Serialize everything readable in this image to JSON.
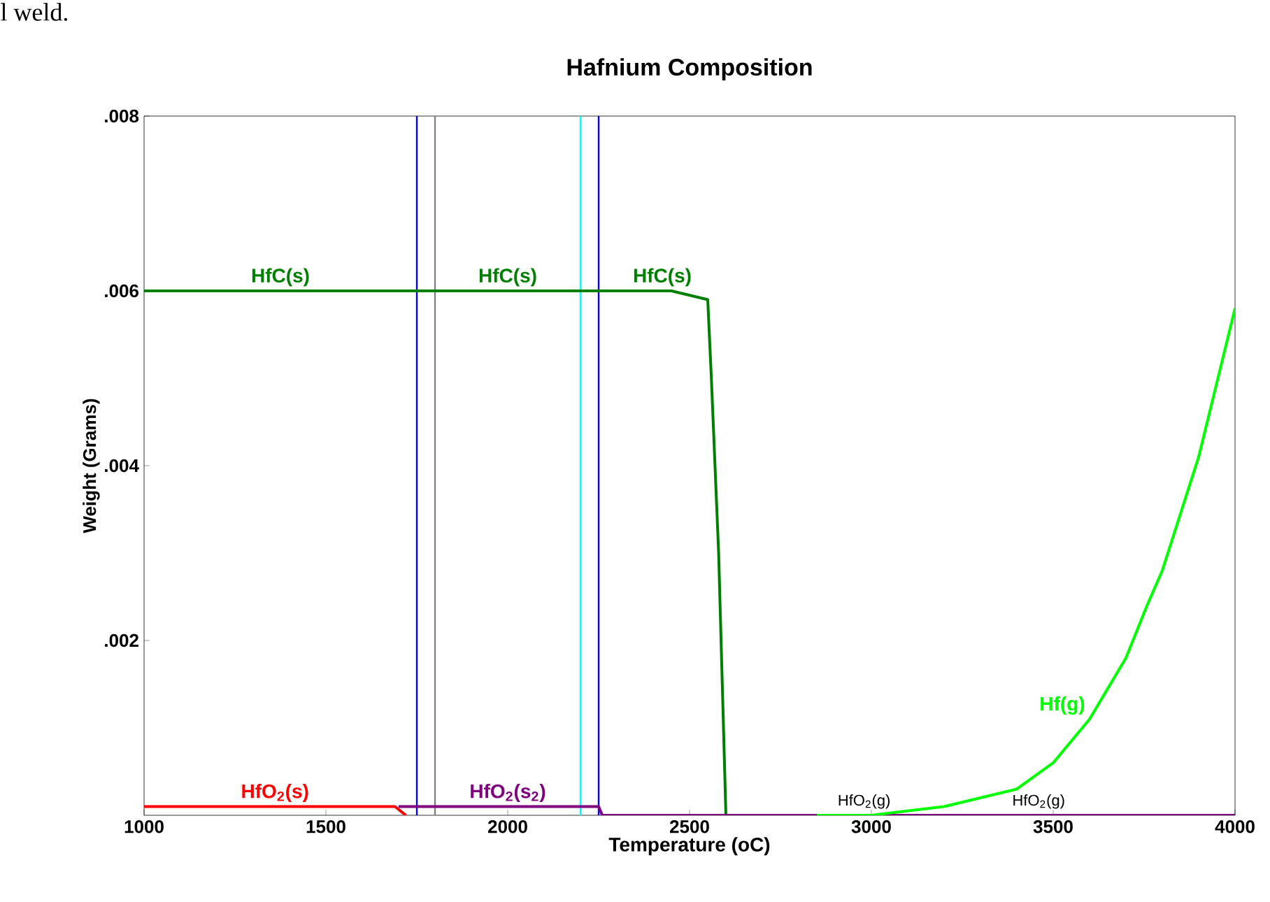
{
  "chart_data": {
    "type": "line",
    "title": "Hafnium Composition",
    "xlabel": "Temperature (oC)",
    "ylabel": "Weight (Grams)",
    "xlim": [
      1000,
      4000
    ],
    "ylim": [
      0,
      0.008
    ],
    "xticks": [
      1000,
      1500,
      2000,
      2500,
      3000,
      3500,
      4000
    ],
    "yticks": [
      {
        "value": 0.002,
        "label": ".002"
      },
      {
        "value": 0.004,
        "label": ".004"
      },
      {
        "value": 0.006,
        "label": ".006"
      },
      {
        "value": 0.008,
        "label": ".008"
      }
    ],
    "series": [
      {
        "name": "HfC(s)",
        "color": "#008000",
        "x": [
          1000,
          2450,
          2550,
          2560,
          2570,
          2580,
          2590,
          2600
        ],
        "values": [
          0.006,
          0.006,
          0.0059,
          0.005,
          0.004,
          0.003,
          0.0015,
          0
        ]
      },
      {
        "name": "HfO$_{2}$(s)",
        "color": "#ff0000",
        "x": [
          1000,
          1690,
          1720
        ],
        "values": [
          0.0001,
          0.0001,
          0
        ]
      },
      {
        "name": "HfO$_{2}$(s$_{2}$)",
        "color": "#800080",
        "x": [
          1700,
          2250,
          2260,
          4000
        ],
        "values": [
          0.0001,
          0.0001,
          0,
          0
        ]
      },
      {
        "name": "Hf(g)",
        "color": "#00ff00",
        "x": [
          2850,
          3000,
          3200,
          3400,
          3500,
          3600,
          3700,
          3758,
          3800,
          3900,
          4000
        ],
        "values": [
          0,
          0,
          0.0001,
          0.0003,
          0.0006,
          0.0011,
          0.0018,
          0.0024,
          0.0028,
          0.0041,
          0.0058
        ]
      }
    ],
    "ref_lines": [
      {
        "axis": "x",
        "value": 1750,
        "color": "#0000ff"
      },
      {
        "axis": "x",
        "value": 1800,
        "color": "#808080"
      },
      {
        "axis": "x",
        "value": 2200,
        "color": "#00ffff"
      },
      {
        "axis": "x",
        "value": 2250,
        "color": "#0000ff"
      }
    ],
    "annotations": [
      "l weld.",
      "HfO$_{2}$(g)",
      "HfO$_{2}$(g)"
    ],
    "grid": false,
    "legend": false
  }
}
